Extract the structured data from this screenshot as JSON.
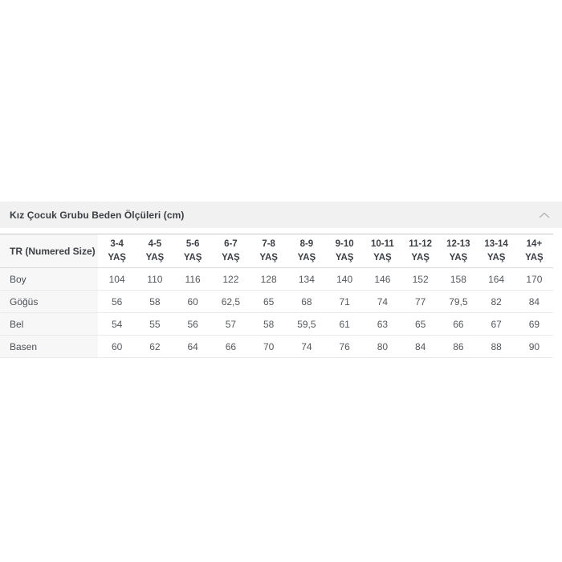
{
  "accordion": {
    "title": "Kız Çocuk Grubu Beden Ölçüleri (cm)",
    "state": "expanded",
    "chevron_icon": "chevron-up"
  },
  "size_table": {
    "header_label": "TR (Numered Size)",
    "age_columns": [
      "3-4 YAŞ",
      "4-5 YAŞ",
      "5-6 YAŞ",
      "6-7 YAŞ",
      "7-8 YAŞ",
      "8-9 YAŞ",
      "9-10 YAŞ",
      "10-11 YAŞ",
      "11-12 YAŞ",
      "12-13 YAŞ",
      "13-14 YAŞ",
      "14+ YAŞ"
    ],
    "rows": [
      {
        "label": "Boy",
        "values": [
          "104",
          "110",
          "116",
          "122",
          "128",
          "134",
          "140",
          "146",
          "152",
          "158",
          "164",
          "170"
        ]
      },
      {
        "label": "Göğüs",
        "values": [
          "56",
          "58",
          "60",
          "62,5",
          "65",
          "68",
          "71",
          "74",
          "77",
          "79,5",
          "82",
          "84"
        ]
      },
      {
        "label": "Bel",
        "values": [
          "54",
          "55",
          "56",
          "57",
          "58",
          "59,5",
          "61",
          "63",
          "65",
          "66",
          "67",
          "69"
        ]
      },
      {
        "label": "Basen",
        "values": [
          "60",
          "62",
          "64",
          "66",
          "70",
          "74",
          "76",
          "80",
          "84",
          "86",
          "88",
          "90"
        ]
      }
    ]
  },
  "colors": {
    "accordion_bg": "#f1f1f2",
    "label_column_bg": "#f7f7f8",
    "table_top_border": "#c9c9c9",
    "row_border": "#ebebeb",
    "text_dark": "#3d4146",
    "text_body": "#54585d"
  }
}
